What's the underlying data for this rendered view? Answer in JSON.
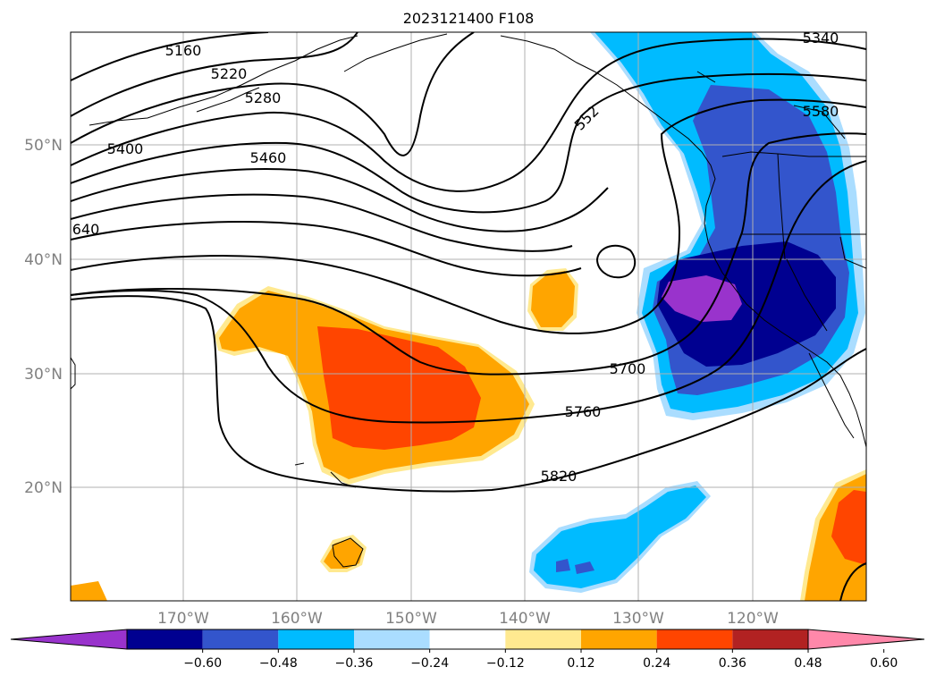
{
  "title": "2023121400 F108",
  "lat_labels": [
    "50°N",
    "40°N",
    "30°N",
    "20°N"
  ],
  "lon_labels": [
    "170°W",
    "160°W",
    "150°W",
    "140°W",
    "130°W",
    "120°W"
  ],
  "contour_labels": [
    "5160",
    "5220",
    "5280",
    "5340",
    "5400",
    "5460",
    "552",
    "5580",
    "640",
    "5700",
    "5760",
    "5820"
  ],
  "colorbar": {
    "ticks": [
      "−0.60",
      "−0.48",
      "−0.36",
      "−0.24",
      "−0.12",
      "0.12",
      "0.24",
      "0.36",
      "0.48",
      "0.60"
    ],
    "colors": [
      "#9933cc",
      "#000090",
      "#3355cc",
      "#00bbff",
      "#aaddff",
      "#ffffff",
      "#ffe990",
      "#ffa500",
      "#ff4500",
      "#b22222",
      "#ff88aa"
    ]
  },
  "colors": {
    "grid": "#b0b0b0",
    "axis_label": "#808080"
  }
}
